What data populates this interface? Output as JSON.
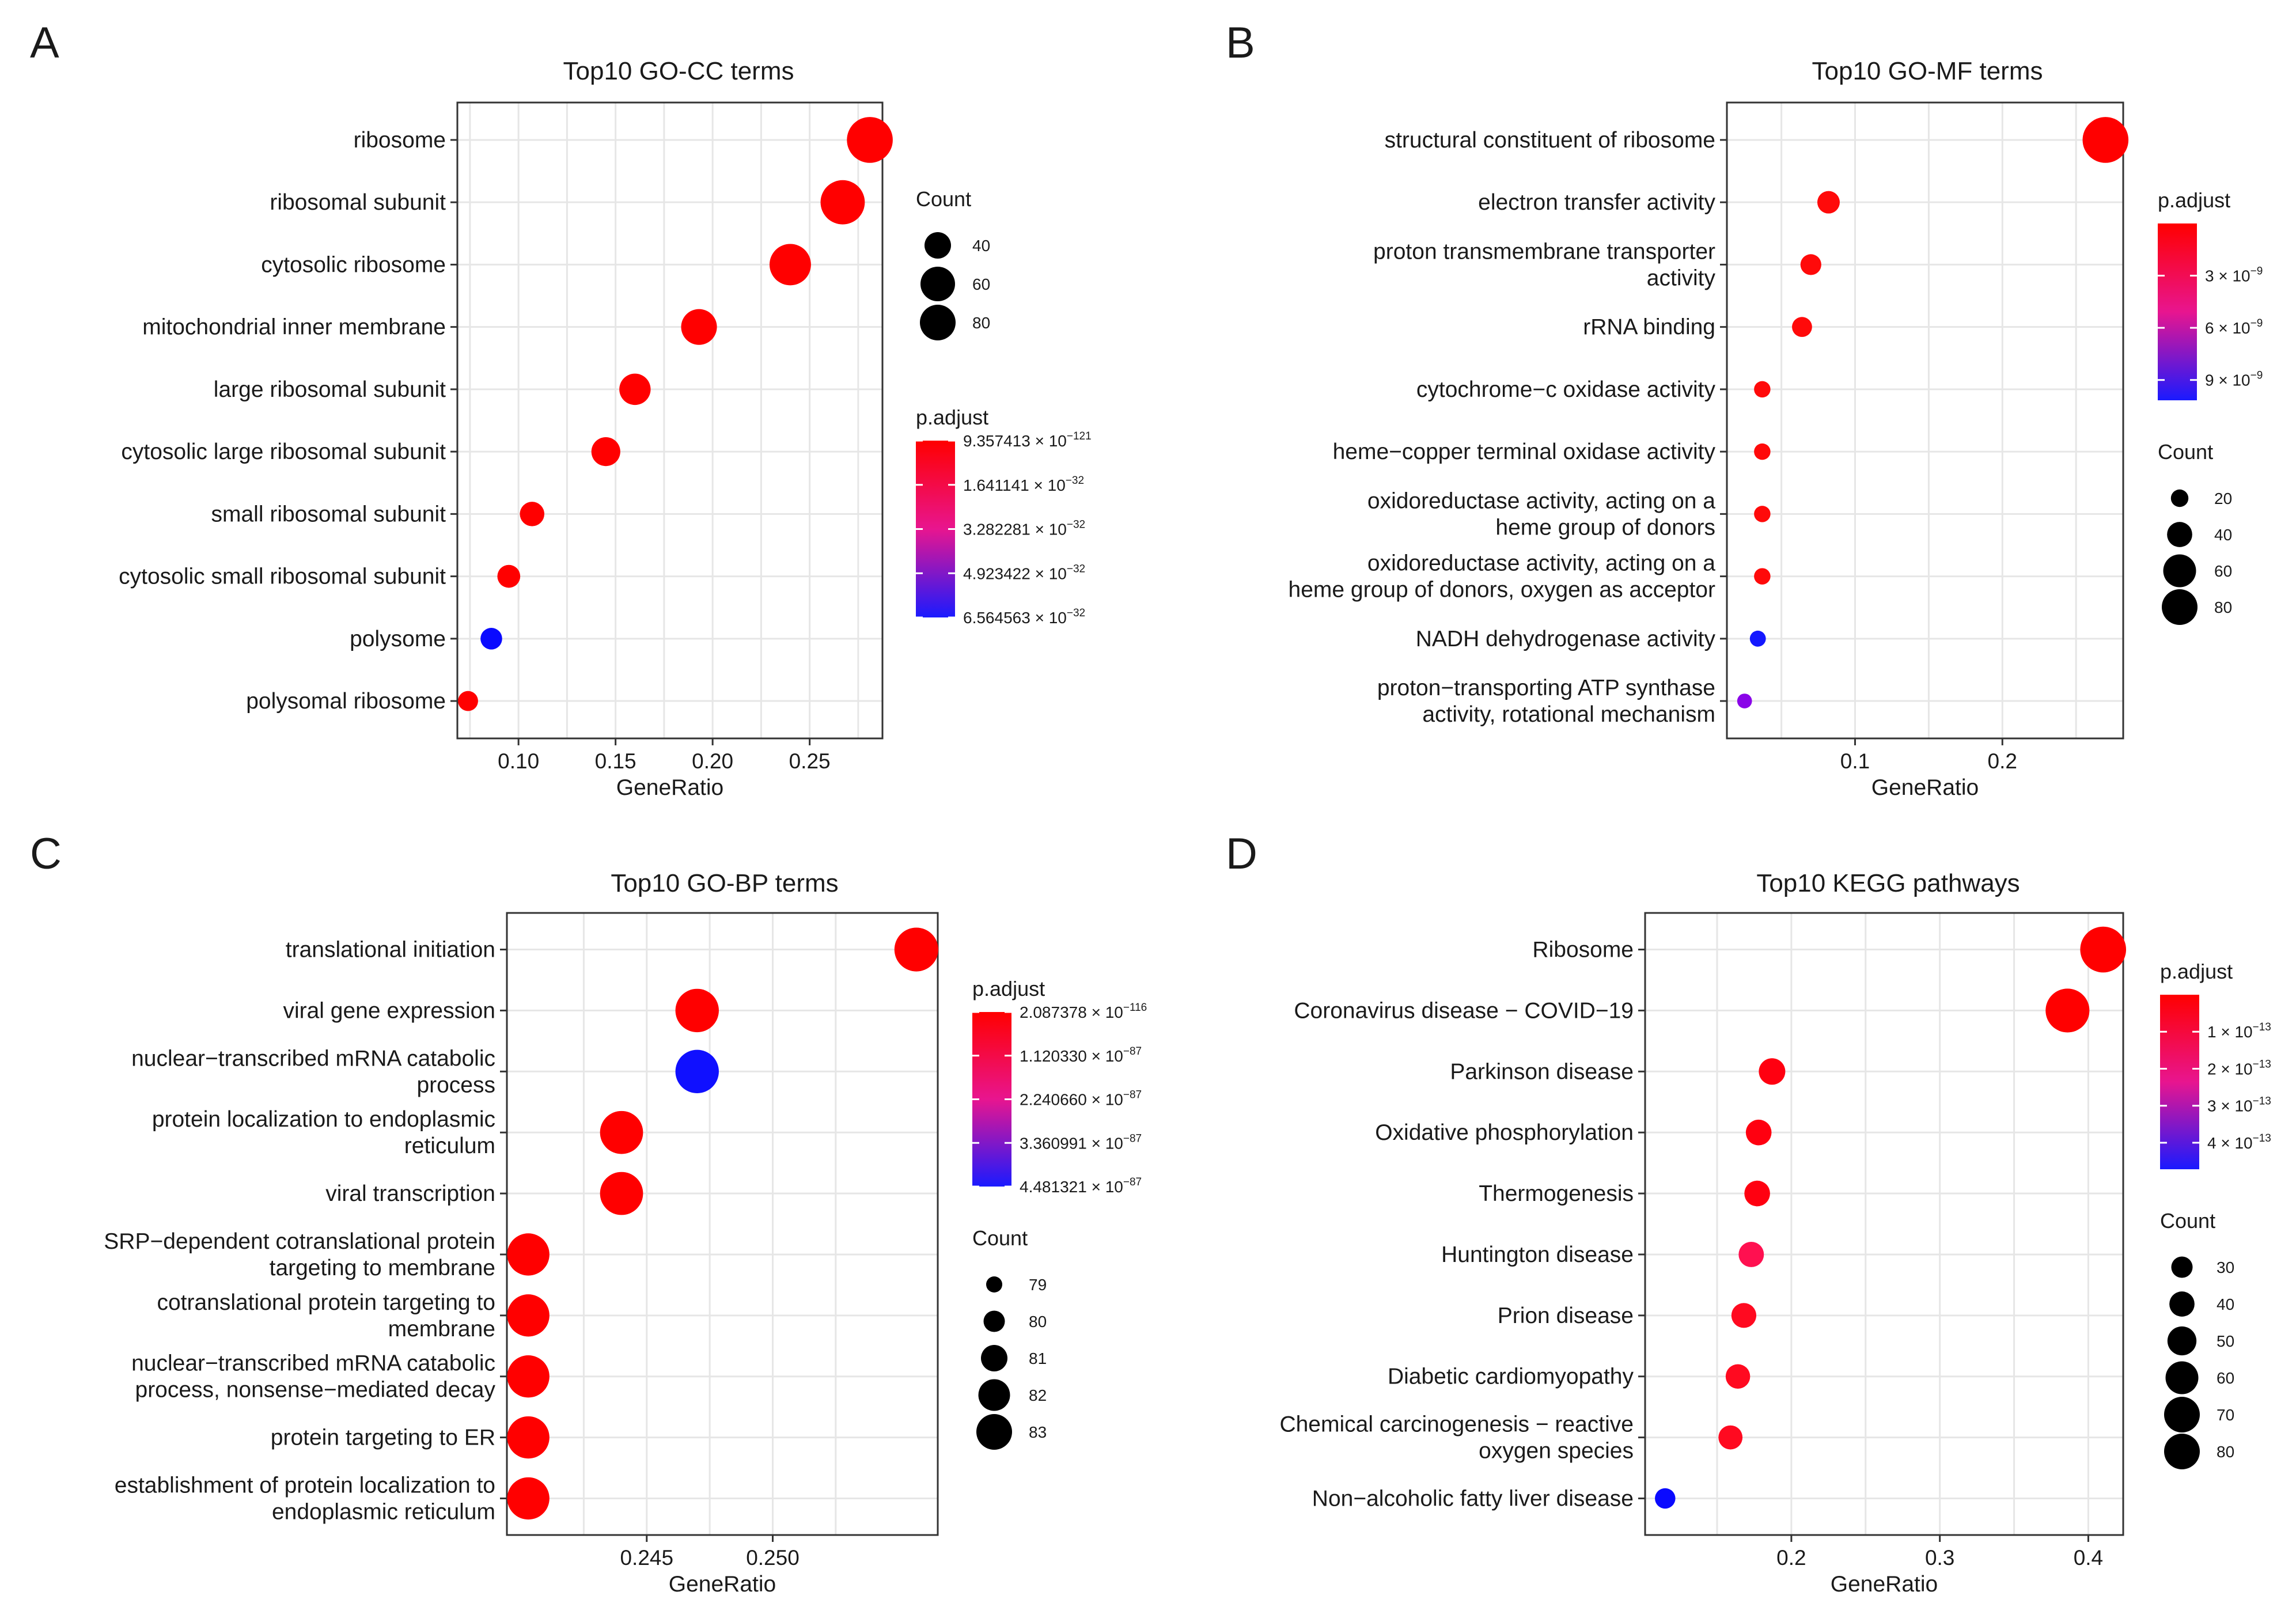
{
  "panels": [
    {
      "letter": "A",
      "title": "Top10 GO-CC terms",
      "xlabel": "GeneRatio",
      "xlim": [
        0.0685,
        0.2875
      ],
      "xticks": [
        {
          "value": 0.1,
          "label": "0.10"
        },
        {
          "value": 0.15,
          "label": "0.15"
        },
        {
          "value": 0.2,
          "label": "0.20"
        },
        {
          "value": 0.25,
          "label": "0.25"
        }
      ],
      "terms": [
        {
          "label": [
            "ribosome"
          ],
          "x": 0.281,
          "count": 88,
          "color": "#ff0000"
        },
        {
          "label": [
            "ribosomal subunit"
          ],
          "x": 0.267,
          "count": 84,
          "color": "#ff0000"
        },
        {
          "label": [
            "cytosolic ribosome"
          ],
          "x": 0.24,
          "count": 77,
          "color": "#ff0000"
        },
        {
          "label": [
            "mitochondrial inner membrane"
          ],
          "x": 0.193,
          "count": 63,
          "color": "#ff0000"
        },
        {
          "label": [
            "large ribosomal subunit"
          ],
          "x": 0.16,
          "count": 52,
          "color": "#ff0000"
        },
        {
          "label": [
            "cytosolic large ribosomal subunit"
          ],
          "x": 0.145,
          "count": 46,
          "color": "#ff0000"
        },
        {
          "label": [
            "small ribosomal subunit"
          ],
          "x": 0.107,
          "count": 35,
          "color": "#ff0000"
        },
        {
          "label": [
            "cytosolic small ribosomal subunit"
          ],
          "x": 0.095,
          "count": 31,
          "color": "#ff0000"
        },
        {
          "label": [
            "polysome"
          ],
          "x": 0.086,
          "count": 28,
          "color": "#0a0aff"
        },
        {
          "label": [
            "polysomal ribosome"
          ],
          "x": 0.074,
          "count": 24,
          "color": "#ff0000"
        }
      ],
      "legend_order": [
        "count",
        "padjust"
      ],
      "count_legend": {
        "title": "Count",
        "items": [
          {
            "label": "40",
            "size": 40
          },
          {
            "label": "60",
            "size": 60
          },
          {
            "label": "80",
            "size": 80
          }
        ]
      },
      "padjust_legend": {
        "title": "p.adjust",
        "ticks": [
          {
            "mant": "9.357413",
            "exp": "−121"
          },
          {
            "mant": "1.641141",
            "exp": "−32"
          },
          {
            "mant": "3.282281",
            "exp": "−32"
          },
          {
            "mant": "4.923422",
            "exp": "−32"
          },
          {
            "mant": "6.564563",
            "exp": "−32"
          }
        ]
      }
    },
    {
      "letter": "B",
      "title": "Top10 GO-MF terms",
      "xlabel": "GeneRatio",
      "xlim": [
        0.013,
        0.282
      ],
      "xticks": [
        {
          "value": 0.1,
          "label": "0.1"
        },
        {
          "value": 0.2,
          "label": "0.2"
        }
      ],
      "terms": [
        {
          "label": [
            "structural constituent of ribosome"
          ],
          "x": 0.27,
          "count": 88,
          "color": "#ff0000"
        },
        {
          "label": [
            "electron transfer activity"
          ],
          "x": 0.082,
          "count": 30,
          "color": "#ff0a0a"
        },
        {
          "label": [
            "proton transmembrane transporter",
            "activity"
          ],
          "x": 0.07,
          "count": 26,
          "color": "#ff0a0a"
        },
        {
          "label": [
            "rRNA binding"
          ],
          "x": 0.064,
          "count": 24,
          "color": "#ff0a0a"
        },
        {
          "label": [
            "cytochrome−c oxidase activity"
          ],
          "x": 0.037,
          "count": 15,
          "color": "#ff0a0a"
        },
        {
          "label": [
            "heme−copper terminal oxidase activity"
          ],
          "x": 0.037,
          "count": 15,
          "color": "#ff0a0a"
        },
        {
          "label": [
            "oxidoreductase activity, acting on a",
            "heme group of donors"
          ],
          "x": 0.037,
          "count": 15,
          "color": "#ff0a0a"
        },
        {
          "label": [
            "oxidoreductase activity, acting on a",
            "heme group of donors, oxygen as acceptor"
          ],
          "x": 0.037,
          "count": 15,
          "color": "#ff0a0a"
        },
        {
          "label": [
            "NADH dehydrogenase activity"
          ],
          "x": 0.034,
          "count": 14,
          "color": "#1418ff"
        },
        {
          "label": [
            "proton−transporting ATP synthase",
            "activity, rotational mechanism"
          ],
          "x": 0.025,
          "count": 11,
          "color": "#8a05e8"
        }
      ],
      "legend_order": [
        "padjust",
        "count"
      ],
      "padjust_legend": {
        "title": "p.adjust",
        "ticks": [
          {
            "mant": "3",
            "exp": "−9"
          },
          {
            "mant": "6",
            "exp": "−9"
          },
          {
            "mant": "9",
            "exp": "−9"
          }
        ]
      },
      "count_legend": {
        "title": "Count",
        "items": [
          {
            "label": "20",
            "size": 20
          },
          {
            "label": "40",
            "size": 40
          },
          {
            "label": "60",
            "size": 60
          },
          {
            "label": "80",
            "size": 80
          }
        ]
      }
    },
    {
      "letter": "C",
      "title": "Top10 GO-BP terms",
      "xlabel": "GeneRatio",
      "xlim": [
        0.23945,
        0.25655
      ],
      "xticks": [
        {
          "value": 0.245,
          "label": "0.245"
        },
        {
          "value": 0.25,
          "label": "0.250"
        }
      ],
      "terms": [
        {
          "label": [
            "translational initiation"
          ],
          "x": 0.2557,
          "count": 83,
          "color": "#ff0000"
        },
        {
          "label": [
            "viral gene expression"
          ],
          "x": 0.247,
          "count": 82,
          "color": "#ff0000"
        },
        {
          "label": [
            "nuclear−transcribed mRNA catabolic",
            "process"
          ],
          "x": 0.247,
          "count": 82,
          "color": "#1010ff"
        },
        {
          "label": [
            "protein localization to endoplasmic",
            "reticulum"
          ],
          "x": 0.244,
          "count": 81,
          "color": "#ff0000"
        },
        {
          "label": [
            "viral transcription"
          ],
          "x": 0.244,
          "count": 81,
          "color": "#ff0000"
        },
        {
          "label": [
            "SRP−dependent cotranslational protein",
            "targeting to membrane"
          ],
          "x": 0.2403,
          "count": 79,
          "color": "#ff0000"
        },
        {
          "label": [
            "cotranslational protein targeting to",
            "membrane"
          ],
          "x": 0.2403,
          "count": 79,
          "color": "#ff0000"
        },
        {
          "label": [
            "nuclear−transcribed mRNA catabolic",
            "process, nonsense−mediated decay"
          ],
          "x": 0.2403,
          "count": 79,
          "color": "#ff0000"
        },
        {
          "label": [
            "protein targeting to ER"
          ],
          "x": 0.2403,
          "count": 79,
          "color": "#ff0000"
        },
        {
          "label": [
            "establishment of protein localization to",
            "endoplasmic reticulum"
          ],
          "x": 0.2403,
          "count": 79,
          "color": "#ff0000"
        }
      ],
      "legend_order": [
        "padjust",
        "count"
      ],
      "padjust_legend": {
        "title": "p.adjust",
        "ticks": [
          {
            "mant": "2.087378",
            "exp": "−116"
          },
          {
            "mant": "1.120330",
            "exp": "−87"
          },
          {
            "mant": "2.240660",
            "exp": "−87"
          },
          {
            "mant": "3.360991",
            "exp": "−87"
          },
          {
            "mant": "4.481321",
            "exp": "−87"
          }
        ]
      },
      "count_legend": {
        "title": "Count",
        "items": [
          {
            "label": "79",
            "size": 79
          },
          {
            "label": "80",
            "size": 80
          },
          {
            "label": "81",
            "size": 81
          },
          {
            "label": "82",
            "size": 82
          },
          {
            "label": "83",
            "size": 83
          }
        ]
      }
    },
    {
      "letter": "D",
      "title": "Top10 KEGG pathways",
      "xlabel": "GeneRatio",
      "xlim": [
        0.1015,
        0.4235
      ],
      "xticks": [
        {
          "value": 0.2,
          "label": "0.2"
        },
        {
          "value": 0.3,
          "label": "0.3"
        },
        {
          "value": 0.4,
          "label": "0.4"
        }
      ],
      "terms": [
        {
          "label": [
            "Ribosome"
          ],
          "x": 0.41,
          "count": 88,
          "color": "#ff0000"
        },
        {
          "label": [
            "Coronavirus disease − COVID−19"
          ],
          "x": 0.386,
          "count": 83,
          "color": "#ff0000"
        },
        {
          "label": [
            "Parkinson disease"
          ],
          "x": 0.187,
          "count": 40,
          "color": "#ff0010"
        },
        {
          "label": [
            "Oxidative phosphorylation"
          ],
          "x": 0.178,
          "count": 38,
          "color": "#ff0010"
        },
        {
          "label": [
            "Thermogenesis"
          ],
          "x": 0.177,
          "count": 38,
          "color": "#ff0010"
        },
        {
          "label": [
            "Huntington disease"
          ],
          "x": 0.173,
          "count": 37,
          "color": "#ff1050"
        },
        {
          "label": [
            "Prion disease"
          ],
          "x": 0.168,
          "count": 36,
          "color": "#ff0a20"
        },
        {
          "label": [
            "Diabetic cardiomyopathy"
          ],
          "x": 0.164,
          "count": 35,
          "color": "#ff0a20"
        },
        {
          "label": [
            "Chemical carcinogenesis − reactive",
            "oxygen species"
          ],
          "x": 0.159,
          "count": 34,
          "color": "#ff0a20"
        },
        {
          "label": [
            "Non−alcoholic fatty liver disease"
          ],
          "x": 0.115,
          "count": 25,
          "color": "#0a0aff"
        }
      ],
      "legend_order": [
        "padjust",
        "count"
      ],
      "padjust_legend": {
        "title": "p.adjust",
        "ticks": [
          {
            "mant": "1",
            "exp": "−13"
          },
          {
            "mant": "2",
            "exp": "−13"
          },
          {
            "mant": "3",
            "exp": "−13"
          },
          {
            "mant": "4",
            "exp": "−13"
          }
        ]
      },
      "count_legend": {
        "title": "Count",
        "items": [
          {
            "label": "30",
            "size": 30
          },
          {
            "label": "40",
            "size": 40
          },
          {
            "label": "50",
            "size": 50
          },
          {
            "label": "60",
            "size": 60
          },
          {
            "label": "70",
            "size": 70
          },
          {
            "label": "80",
            "size": 80
          }
        ]
      }
    }
  ],
  "chart_data": [
    {
      "type": "scatter",
      "title": "Top10 GO-CC terms",
      "xlabel": "GeneRatio",
      "ylabel": "",
      "xlim": [
        0.0685,
        0.2875
      ],
      "categories": [
        "ribosome",
        "ribosomal subunit",
        "cytosolic ribosome",
        "mitochondrial inner membrane",
        "large ribosomal subunit",
        "cytosolic large ribosomal subunit",
        "small ribosomal subunit",
        "cytosolic small ribosomal subunit",
        "polysome",
        "polysomal ribosome"
      ],
      "x": [
        0.281,
        0.267,
        0.24,
        0.193,
        0.16,
        0.145,
        0.107,
        0.095,
        0.086,
        0.074
      ],
      "size": [
        88,
        84,
        77,
        63,
        52,
        46,
        35,
        31,
        28,
        24
      ],
      "legend": [
        "Count",
        "p.adjust"
      ]
    },
    {
      "type": "scatter",
      "title": "Top10 GO-MF terms",
      "xlabel": "GeneRatio",
      "ylabel": "",
      "xlim": [
        0.013,
        0.282
      ],
      "categories": [
        "structural constituent of ribosome",
        "electron transfer activity",
        "proton transmembrane transporter activity",
        "rRNA binding",
        "cytochrome−c oxidase activity",
        "heme−copper terminal oxidase activity",
        "oxidoreductase activity, acting on a heme group of donors",
        "oxidoreductase activity, acting on a heme group of donors, oxygen as acceptor",
        "NADH dehydrogenase activity",
        "proton−transporting ATP synthase activity, rotational mechanism"
      ],
      "x": [
        0.27,
        0.082,
        0.07,
        0.064,
        0.037,
        0.037,
        0.037,
        0.037,
        0.034,
        0.025
      ],
      "size": [
        88,
        30,
        26,
        24,
        15,
        15,
        15,
        15,
        14,
        11
      ],
      "legend": [
        "p.adjust",
        "Count"
      ]
    },
    {
      "type": "scatter",
      "title": "Top10 GO-BP terms",
      "xlabel": "GeneRatio",
      "ylabel": "",
      "xlim": [
        0.23945,
        0.25655
      ],
      "categories": [
        "translational initiation",
        "viral gene expression",
        "nuclear−transcribed mRNA catabolic process",
        "protein localization to endoplasmic reticulum",
        "viral transcription",
        "SRP−dependent cotranslational protein targeting to membrane",
        "cotranslational protein targeting to membrane",
        "nuclear−transcribed mRNA catabolic process, nonsense−mediated decay",
        "protein targeting to ER",
        "establishment of protein localization to endoplasmic reticulum"
      ],
      "x": [
        0.2557,
        0.247,
        0.247,
        0.244,
        0.244,
        0.2403,
        0.2403,
        0.2403,
        0.2403,
        0.2403
      ],
      "size": [
        83,
        82,
        82,
        81,
        81,
        79,
        79,
        79,
        79,
        79
      ],
      "legend": [
        "p.adjust",
        "Count"
      ]
    },
    {
      "type": "scatter",
      "title": "Top10 KEGG pathways",
      "xlabel": "GeneRatio",
      "ylabel": "",
      "xlim": [
        0.1015,
        0.4235
      ],
      "categories": [
        "Ribosome",
        "Coronavirus disease − COVID−19",
        "Parkinson disease",
        "Oxidative phosphorylation",
        "Thermogenesis",
        "Huntington disease",
        "Prion disease",
        "Diabetic cardiomyopathy",
        "Chemical carcinogenesis − reactive oxygen species",
        "Non−alcoholic fatty liver disease"
      ],
      "x": [
        0.41,
        0.386,
        0.187,
        0.178,
        0.177,
        0.173,
        0.168,
        0.164,
        0.159,
        0.115
      ],
      "size": [
        88,
        83,
        40,
        38,
        38,
        37,
        36,
        35,
        34,
        25
      ],
      "legend": [
        "p.adjust",
        "Count"
      ]
    }
  ]
}
